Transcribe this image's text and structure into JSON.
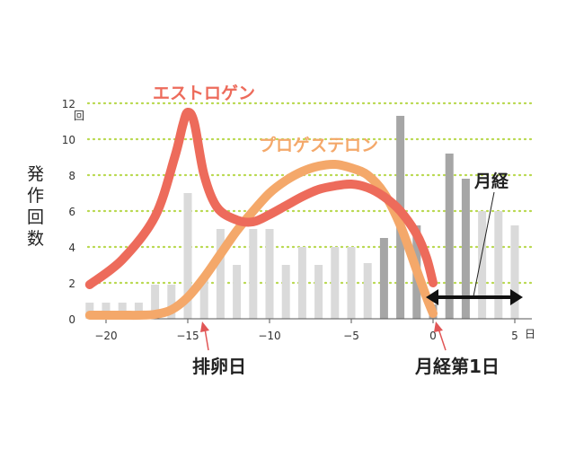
{
  "chart_data": {
    "type": "bar+line",
    "ylabel": "発作回数",
    "y_unit": "回",
    "x_unit": "日",
    "xlim": [
      -22,
      5.5
    ],
    "ylim": [
      0,
      12
    ],
    "y_ticks": [
      0,
      2,
      4,
      6,
      8,
      10,
      12
    ],
    "x_ticks": [
      {
        "value": -20,
        "label": "−20"
      },
      {
        "value": -15,
        "label": "−15"
      },
      {
        "value": -10,
        "label": "−10"
      },
      {
        "value": -5,
        "label": "−5"
      },
      {
        "value": 0,
        "label": "0"
      },
      {
        "value": 5,
        "label": "5"
      }
    ],
    "grid": true,
    "bars": {
      "x": [
        -21,
        -20,
        -19,
        -18,
        -17,
        -16,
        -15,
        -14,
        -13,
        -12,
        -11,
        -10,
        -9,
        -8,
        -7,
        -6,
        -5,
        -4,
        -3,
        -2,
        -1,
        0,
        1,
        2,
        3,
        4,
        5
      ],
      "values": [
        0.9,
        0.9,
        0.9,
        0.9,
        1.9,
        1.9,
        7.0,
        2.2,
        5.0,
        3.0,
        5.0,
        5.0,
        3.0,
        4.0,
        3.0,
        4.0,
        4.0,
        3.1,
        4.5,
        11.3,
        5.2,
        0.8,
        9.2,
        7.8,
        6.0,
        6.0,
        5.2
      ],
      "colors": [
        "#dadada",
        "#dadada",
        "#dadada",
        "#dadada",
        "#dadada",
        "#dadada",
        "#dadada",
        "#dadada",
        "#dadada",
        "#dadada",
        "#dadada",
        "#dadada",
        "#dadada",
        "#dadada",
        "#dadada",
        "#dadada",
        "#dadada",
        "#dadada",
        "#a6a6a6",
        "#a6a6a6",
        "#a6a6a6",
        "#a6a6a6",
        "#a6a6a6",
        "#a6a6a6",
        "#dadada",
        "#dadada",
        "#dadada"
      ]
    },
    "series": [
      {
        "name": "エストロゲン",
        "color": "#ed6b5b",
        "x": [
          -21,
          -19,
          -17,
          -15.8,
          -15.3,
          -15,
          -14.6,
          -14,
          -13.2,
          -12,
          -11,
          -10,
          -9,
          -8,
          -7,
          -6,
          -5,
          -4,
          -3,
          -2,
          -1,
          -0.4,
          0
        ],
        "y": [
          1.9,
          3.3,
          5.7,
          9.0,
          10.8,
          11.5,
          10.9,
          8.0,
          6.2,
          5.5,
          5.4,
          5.8,
          6.3,
          6.8,
          7.2,
          7.4,
          7.5,
          7.3,
          6.8,
          6.0,
          4.7,
          3.4,
          2.0
        ]
      },
      {
        "name": "プロゲステロン",
        "color": "#f4a86a",
        "x": [
          -21,
          -19,
          -18,
          -17,
          -16,
          -15,
          -14,
          -13,
          -12,
          -11,
          -10,
          -9,
          -8,
          -7,
          -6,
          -5,
          -4,
          -3,
          -2,
          -1,
          -0.4,
          0
        ],
        "y": [
          0.2,
          0.2,
          0.2,
          0.25,
          0.5,
          1.2,
          2.3,
          3.6,
          4.9,
          6.0,
          7.0,
          7.7,
          8.2,
          8.5,
          8.6,
          8.4,
          8.0,
          7.0,
          5.2,
          2.7,
          1.2,
          0.3
        ]
      }
    ],
    "annotations": [
      {
        "text": "排卵日",
        "x": -14.5
      },
      {
        "text": "月経第1日",
        "x": 0.2
      },
      {
        "text": "月経",
        "range": [
          0,
          5
        ]
      }
    ]
  }
}
